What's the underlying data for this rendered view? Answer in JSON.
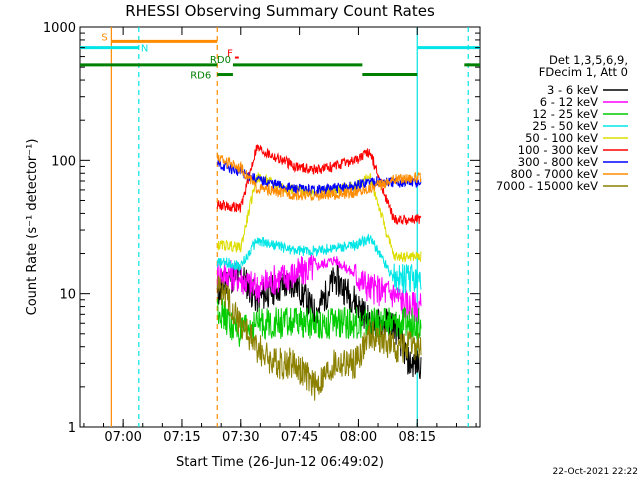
{
  "chart_data": {
    "type": "line",
    "title": "RHESSI Observing Summary Count Rates",
    "xlabel": "Start Time (26-Jun-12 06:49:02)",
    "ylabel": "Count Rate (s⁻¹ detector⁻¹)",
    "yscale": "log",
    "ylim": [
      1,
      1000
    ],
    "xlim_minutes_after_0649": [
      0,
      102
    ],
    "x_ticks": [
      {
        "t": 11,
        "label": "07:00"
      },
      {
        "t": 26,
        "label": "07:15"
      },
      {
        "t": 41,
        "label": "07:30"
      },
      {
        "t": 56,
        "label": "07:45"
      },
      {
        "t": 71,
        "label": "08:00"
      },
      {
        "t": 86,
        "label": "08:15"
      }
    ],
    "y_ticks": [
      {
        "v": 1,
        "label": "1"
      },
      {
        "v": 10,
        "label": "10"
      },
      {
        "v": 100,
        "label": "100"
      },
      {
        "v": 1000,
        "label": "1000"
      }
    ],
    "legend": {
      "header": [
        "Det 1,3,5,6,9,",
        "FDecim 1, Att 0"
      ],
      "placement": "right"
    },
    "series": [
      {
        "name": "3 - 6 keV",
        "color": "#000000",
        "x": [
          35,
          38,
          41,
          45,
          50,
          55,
          60,
          65,
          70,
          74,
          80,
          84,
          87
        ],
        "y": [
          10,
          13,
          14,
          9,
          11,
          12,
          7,
          13,
          9,
          6,
          6,
          3,
          3
        ]
      },
      {
        "name": "6 - 12 keV",
        "color": "#ff00ff",
        "x": [
          35,
          38,
          41,
          45,
          50,
          55,
          60,
          65,
          70,
          74,
          80,
          84,
          87
        ],
        "y": [
          14,
          14,
          13,
          11,
          13,
          14,
          16,
          18,
          14,
          11,
          10,
          8,
          8
        ]
      },
      {
        "name": "12 - 25 keV",
        "color": "#00cc00",
        "x": [
          35,
          38,
          41,
          45,
          50,
          55,
          60,
          65,
          70,
          74,
          80,
          84,
          87
        ],
        "y": [
          8,
          6,
          5,
          6,
          6,
          6,
          6,
          6,
          6,
          6,
          6,
          6,
          6
        ]
      },
      {
        "name": "25 - 50 keV",
        "color": "#00e5e5",
        "x": [
          35,
          38,
          41,
          45,
          50,
          55,
          60,
          65,
          70,
          74,
          80,
          84,
          87
        ],
        "y": [
          17,
          17,
          16,
          25,
          23,
          21,
          21,
          22,
          23,
          26,
          13,
          13,
          13
        ]
      },
      {
        "name": "50 - 100 keV",
        "color": "#dddd00",
        "x": [
          35,
          38,
          41,
          45,
          50,
          55,
          60,
          65,
          70,
          74,
          80,
          84,
          87
        ],
        "y": [
          23,
          23,
          22,
          75,
          66,
          60,
          58,
          60,
          64,
          75,
          19,
          19,
          19
        ]
      },
      {
        "name": "100 - 300 keV",
        "color": "#ff0000",
        "x": [
          35,
          38,
          41,
          45,
          50,
          55,
          60,
          65,
          70,
          74,
          80,
          84,
          87
        ],
        "y": [
          47,
          45,
          44,
          125,
          105,
          90,
          85,
          90,
          100,
          115,
          36,
          36,
          36
        ]
      },
      {
        "name": "300 - 800 keV",
        "color": "#0000ff",
        "x": [
          35,
          38,
          41,
          45,
          50,
          55,
          60,
          65,
          70,
          74,
          80,
          84,
          87
        ],
        "y": [
          94,
          88,
          82,
          72,
          66,
          61,
          60,
          62,
          64,
          70,
          68,
          68,
          68
        ]
      },
      {
        "name": "800 - 7000 keV",
        "color": "#ff8c00",
        "x": [
          35,
          38,
          41,
          45,
          50,
          55,
          60,
          65,
          70,
          74,
          80,
          84,
          87
        ],
        "y": [
          105,
          97,
          88,
          62,
          58,
          55,
          54,
          55,
          57,
          62,
          72,
          74,
          74
        ]
      },
      {
        "name": "7000 - 15000 keV",
        "color": "#8b8000",
        "x": [
          35,
          38,
          41,
          45,
          50,
          55,
          60,
          65,
          70,
          74,
          80,
          84,
          87
        ],
        "y": [
          12,
          9,
          6,
          4,
          3,
          3,
          2,
          3,
          3,
          5,
          4,
          4,
          4
        ]
      }
    ],
    "flags": [
      {
        "label": "S",
        "color": "#ff8c00",
        "x": [
          8,
          35
        ],
        "y": 780
      },
      {
        "label": "N",
        "color": "#00e5e5",
        "x": [
          0,
          15
        ],
        "y": 700,
        "x2": [
          86,
          102
        ]
      },
      {
        "label": "RD0",
        "color": "#008000",
        "x": [
          0,
          102
        ],
        "y": 520
      },
      {
        "label": "RD6",
        "color": "#008000",
        "x": [
          35,
          39
        ],
        "y": 440
      },
      {
        "label": "F",
        "color": "#ff0000",
        "x": [
          39,
          40
        ],
        "y": 590
      }
    ],
    "vlines": [
      {
        "t": 8,
        "color": "#ff8c00",
        "style": "solid"
      },
      {
        "t": 15,
        "color": "#00e5e5",
        "style": "dashed"
      },
      {
        "t": 35,
        "color": "#ff8c00",
        "style": "dashed"
      },
      {
        "t": 86,
        "color": "#00e5e5",
        "style": "solid"
      },
      {
        "t": 99,
        "color": "#00e5e5",
        "style": "dashed"
      }
    ],
    "grid": false
  },
  "timestamp": "22-Oct-2021 22:22"
}
